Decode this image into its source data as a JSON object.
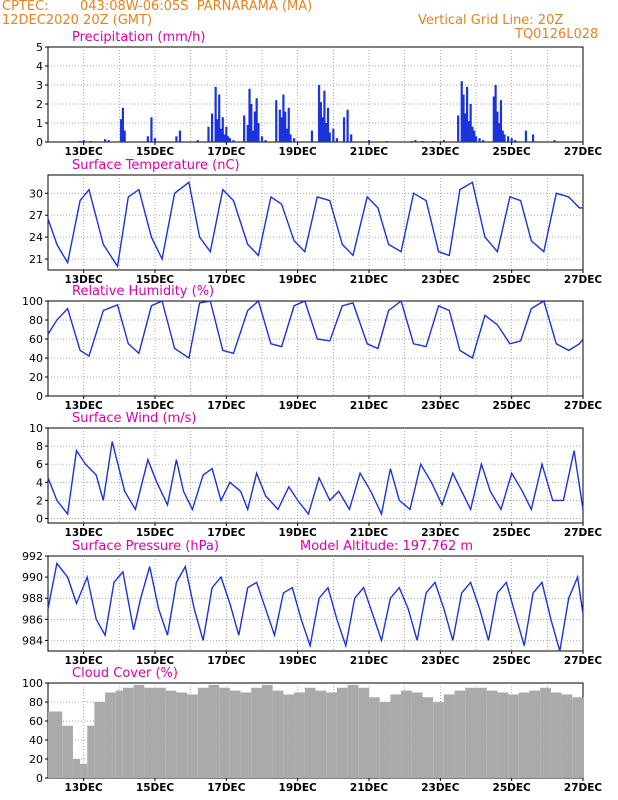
{
  "header": {
    "source": "CPTEC:",
    "location": "043:08W-06:05S  PARNARAMA (MA)",
    "run": "12DEC2020 20Z (GMT)",
    "grid_line": "Vertical Grid Line: 20Z",
    "code": "TQ0126L028"
  },
  "colors": {
    "accent": "#e8821e",
    "title": "#dd00aa",
    "line": "#1a33dd",
    "cloud": "#aaaaaa"
  },
  "chart_data": [
    {
      "type": "bar",
      "title": "Precipitation (mm/h)",
      "x_ticks": [
        "13DEC",
        "15DEC",
        "17DEC",
        "19DEC",
        "21DEC",
        "23DEC",
        "25DEC",
        "27DEC"
      ],
      "ylim": [
        0,
        5
      ],
      "yticks": [
        0,
        1,
        2,
        3,
        4,
        5
      ],
      "x": [
        0.9,
        1.0,
        1.2,
        1.6,
        1.7,
        2.05,
        2.1,
        2.15,
        2.8,
        2.9,
        3.0,
        3.6,
        3.7,
        4.2,
        4.5,
        4.6,
        4.7,
        4.75,
        4.8,
        4.85,
        4.9,
        4.95,
        5.0,
        5.05,
        5.1,
        5.2,
        5.5,
        5.6,
        5.65,
        5.7,
        5.75,
        5.8,
        5.85,
        5.9,
        6.0,
        6.1,
        6.4,
        6.5,
        6.55,
        6.6,
        6.65,
        6.7,
        6.75,
        6.8,
        6.9,
        7.4,
        7.6,
        7.65,
        7.7,
        7.75,
        7.8,
        7.85,
        7.9,
        8.0,
        8.1,
        8.3,
        8.4,
        8.5,
        9.0,
        9.5,
        10.2,
        10.3,
        10.5,
        10.8,
        11.1,
        11.5,
        11.6,
        11.65,
        11.7,
        11.75,
        11.8,
        11.85,
        11.9,
        11.95,
        12.0,
        12.1,
        12.2,
        12.5,
        12.55,
        12.6,
        12.65,
        12.7,
        12.75,
        12.8,
        12.9,
        13.0,
        13.1,
        13.4,
        13.6,
        14.2
      ],
      "values": [
        0.05,
        0.1,
        0.05,
        0.15,
        0.1,
        1.2,
        1.8,
        0.6,
        0.3,
        1.3,
        0.2,
        0.3,
        0.6,
        0.1,
        0.8,
        1.5,
        2.9,
        1.2,
        2.5,
        0.7,
        1.3,
        0.4,
        0.8,
        0.3,
        0.2,
        0.1,
        1.4,
        0.9,
        2.8,
        2.0,
        0.6,
        1.6,
        2.3,
        1.0,
        0.3,
        0.1,
        2.2,
        1.7,
        1.3,
        2.5,
        1.6,
        0.7,
        1.8,
        0.4,
        0.2,
        0.6,
        3.0,
        2.1,
        1.3,
        2.7,
        1.0,
        1.8,
        0.5,
        0.7,
        0.2,
        1.3,
        1.7,
        0.4,
        0.1,
        0.05,
        0.05,
        0.1,
        0.05,
        0.05,
        0.1,
        1.4,
        3.2,
        2.5,
        1.5,
        2.9,
        1.1,
        2.0,
        0.8,
        0.6,
        0.3,
        0.2,
        0.1,
        2.4,
        3.0,
        1.6,
        1.0,
        2.2,
        0.6,
        0.4,
        0.3,
        0.2,
        0.1,
        0.6,
        0.4,
        0.1
      ]
    },
    {
      "type": "line",
      "title": "Surface Temperature (nC)",
      "x_ticks": [
        "13DEC",
        "15DEC",
        "17DEC",
        "19DEC",
        "21DEC",
        "23DEC",
        "25DEC",
        "27DEC"
      ],
      "ylim": [
        19.5,
        32.5
      ],
      "yticks": [
        21,
        24,
        27,
        30
      ],
      "x": [
        0,
        0.25,
        0.55,
        0.9,
        1.15,
        1.55,
        1.95,
        2.25,
        2.55,
        2.9,
        3.2,
        3.55,
        3.95,
        4.25,
        4.55,
        4.9,
        5.2,
        5.6,
        5.9,
        6.25,
        6.55,
        6.9,
        7.2,
        7.55,
        7.9,
        8.25,
        8.55,
        8.95,
        9.25,
        9.55,
        9.9,
        10.25,
        10.6,
        10.95,
        11.25,
        11.55,
        11.9,
        12.25,
        12.6,
        12.95,
        13.25,
        13.55,
        13.9,
        14.25,
        14.6,
        14.9,
        15.0
      ],
      "values": [
        26.5,
        23,
        20.5,
        29,
        30.5,
        23,
        20,
        29.5,
        30.5,
        24,
        21,
        30,
        31.5,
        24,
        22,
        30.5,
        29,
        23,
        21.5,
        29.5,
        28.5,
        23.5,
        22,
        29.5,
        29,
        23,
        21.5,
        29.5,
        28,
        23,
        22,
        30,
        29,
        22,
        21.5,
        30.5,
        31.5,
        24,
        22,
        29.5,
        29,
        23.5,
        22,
        30,
        29.5,
        28,
        28
      ]
    },
    {
      "type": "line",
      "title": "Relative Humidity (%)",
      "x_ticks": [
        "13DEC",
        "15DEC",
        "17DEC",
        "19DEC",
        "21DEC",
        "23DEC",
        "25DEC",
        "27DEC"
      ],
      "ylim": [
        0,
        100
      ],
      "yticks": [
        0,
        20,
        40,
        60,
        80,
        100
      ],
      "x": [
        0,
        0.25,
        0.55,
        0.9,
        1.15,
        1.55,
        1.95,
        2.25,
        2.55,
        2.9,
        3.2,
        3.55,
        3.95,
        4.25,
        4.55,
        4.9,
        5.2,
        5.6,
        5.9,
        6.25,
        6.55,
        6.9,
        7.2,
        7.55,
        7.9,
        8.25,
        8.55,
        8.95,
        9.25,
        9.55,
        9.9,
        10.25,
        10.6,
        10.95,
        11.25,
        11.55,
        11.9,
        12.25,
        12.6,
        12.95,
        13.25,
        13.55,
        13.9,
        14.25,
        14.6,
        14.9,
        15.0
      ],
      "values": [
        65,
        80,
        92,
        48,
        42,
        90,
        96,
        55,
        45,
        95,
        100,
        50,
        40,
        98,
        100,
        48,
        45,
        90,
        100,
        55,
        52,
        95,
        100,
        60,
        58,
        95,
        98,
        55,
        50,
        90,
        100,
        55,
        52,
        95,
        90,
        48,
        40,
        85,
        75,
        55,
        58,
        92,
        100,
        55,
        48,
        55,
        60
      ]
    },
    {
      "type": "line",
      "title": "Surface Wind (m/s)",
      "x_ticks": [
        "13DEC",
        "15DEC",
        "17DEC",
        "19DEC",
        "21DEC",
        "23DEC",
        "25DEC",
        "27DEC"
      ],
      "ylim": [
        -0.5,
        10
      ],
      "yticks": [
        0,
        2,
        4,
        6,
        8,
        10
      ],
      "x": [
        0,
        0.25,
        0.55,
        0.8,
        1.05,
        1.35,
        1.55,
        1.8,
        2.15,
        2.45,
        2.8,
        3.05,
        3.35,
        3.6,
        3.8,
        4.05,
        4.35,
        4.6,
        4.85,
        5.1,
        5.4,
        5.6,
        5.85,
        6.1,
        6.45,
        6.75,
        7.0,
        7.3,
        7.6,
        7.9,
        8.15,
        8.45,
        8.75,
        9.05,
        9.35,
        9.6,
        9.85,
        10.15,
        10.45,
        10.75,
        11.05,
        11.35,
        11.6,
        11.85,
        12.15,
        12.4,
        12.7,
        13.0,
        13.3,
        13.55,
        13.85,
        14.15,
        14.45,
        14.75,
        15.0
      ],
      "values": [
        4.5,
        2,
        0.5,
        7.5,
        6,
        4.8,
        2,
        8.5,
        3,
        1,
        6.5,
        4,
        1.5,
        6.5,
        3,
        1,
        4.8,
        5.5,
        2,
        4,
        3,
        1,
        5,
        2.5,
        1,
        3.5,
        2,
        0.5,
        4.5,
        2,
        3,
        1,
        5,
        3,
        0.5,
        5.5,
        2,
        1,
        6,
        4,
        1.5,
        5,
        3,
        1,
        6,
        3,
        1,
        5,
        3,
        1,
        6,
        2,
        2,
        7.5,
        1
      ]
    },
    {
      "type": "line",
      "title": "Surface Pressure (hPa)",
      "annotation": "Model Altitude: 197.762 m",
      "x_ticks": [
        "13DEC",
        "15DEC",
        "17DEC",
        "19DEC",
        "21DEC",
        "23DEC",
        "25DEC",
        "27DEC"
      ],
      "ylim": [
        983,
        992
      ],
      "yticks": [
        984,
        986,
        988,
        990,
        992
      ],
      "x": [
        0,
        0.25,
        0.55,
        0.8,
        1.1,
        1.35,
        1.6,
        1.85,
        2.1,
        2.4,
        2.6,
        2.85,
        3.1,
        3.35,
        3.6,
        3.85,
        4.1,
        4.35,
        4.6,
        4.85,
        5.1,
        5.35,
        5.6,
        5.85,
        6.1,
        6.35,
        6.6,
        6.85,
        7.1,
        7.35,
        7.6,
        7.85,
        8.1,
        8.35,
        8.6,
        8.85,
        9.1,
        9.35,
        9.6,
        9.85,
        10.1,
        10.35,
        10.6,
        10.85,
        11.1,
        11.35,
        11.6,
        11.85,
        12.1,
        12.35,
        12.6,
        12.85,
        13.1,
        13.35,
        13.6,
        13.85,
        14.1,
        14.35,
        14.6,
        14.85,
        15.0
      ],
      "values": [
        987,
        991.3,
        990,
        987.5,
        990,
        986,
        984.5,
        989.5,
        990.5,
        985,
        988,
        991,
        987,
        984.5,
        989.5,
        991,
        987,
        984,
        989,
        990,
        987.5,
        984.5,
        989,
        989.5,
        987,
        984.5,
        988.5,
        989,
        986,
        983.5,
        988,
        989,
        986,
        983.5,
        988,
        989,
        986.5,
        984,
        988,
        989,
        987,
        984,
        988.5,
        989.5,
        987,
        984,
        988.5,
        989.5,
        987,
        984,
        988.5,
        989.5,
        986.5,
        983.5,
        988.5,
        989.5,
        986,
        983,
        988,
        990,
        986.5
      ]
    },
    {
      "type": "bar",
      "title": "Cloud Cover (%)",
      "x_ticks": [
        "13DEC",
        "15DEC",
        "17DEC",
        "19DEC",
        "21DEC",
        "23DEC",
        "25DEC",
        "27DEC"
      ],
      "ylim": [
        0,
        100
      ],
      "yticks": [
        0,
        20,
        40,
        60,
        80,
        100
      ],
      "x": [
        0,
        0.4,
        0.7,
        0.9,
        1.1,
        1.3,
        1.6,
        1.9,
        2.1,
        2.4,
        2.7,
        3.0,
        3.3,
        3.6,
        3.9,
        4.2,
        4.5,
        4.8,
        5.1,
        5.4,
        5.7,
        6.0,
        6.3,
        6.6,
        6.9,
        7.2,
        7.5,
        7.8,
        8.1,
        8.4,
        8.7,
        9.0,
        9.3,
        9.6,
        9.9,
        10.2,
        10.5,
        10.8,
        11.1,
        11.4,
        11.7,
        12.0,
        12.3,
        12.6,
        12.9,
        13.2,
        13.5,
        13.8,
        14.1,
        14.4,
        14.7,
        15.0
      ],
      "values": [
        70,
        55,
        20,
        15,
        55,
        80,
        90,
        92,
        95,
        98,
        95,
        95,
        92,
        90,
        88,
        95,
        98,
        95,
        92,
        90,
        95,
        98,
        92,
        88,
        90,
        95,
        92,
        90,
        95,
        98,
        95,
        85,
        80,
        88,
        92,
        90,
        85,
        80,
        88,
        92,
        95,
        95,
        92,
        90,
        88,
        90,
        92,
        95,
        90,
        88,
        85,
        85
      ]
    }
  ]
}
